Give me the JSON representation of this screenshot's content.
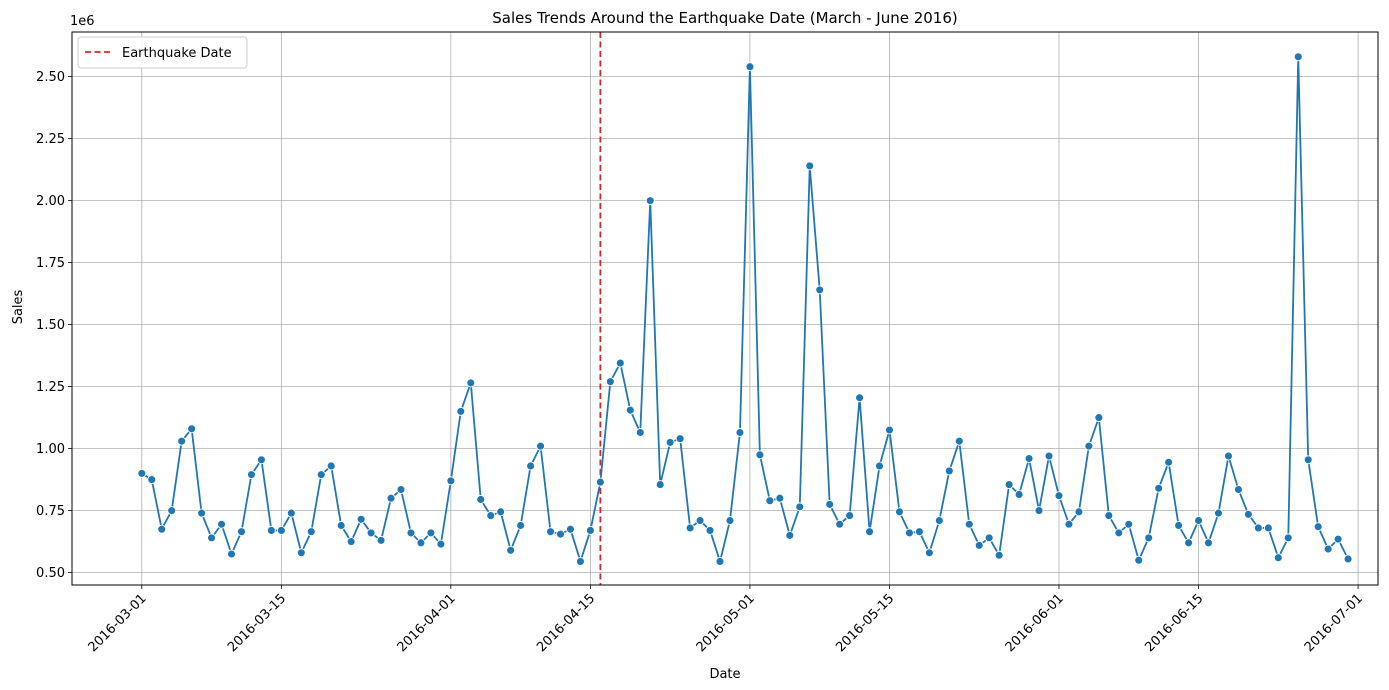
{
  "chart_data": {
    "type": "line",
    "title": "Sales Trends Around the Earthquake Date (March - June 2016)",
    "xlabel": "Date",
    "ylabel": "Sales",
    "y_offset_text": "1e6",
    "x_range": [
      "2016-02-23",
      "2016-07-03"
    ],
    "ylim": [
      0.45,
      2.68
    ],
    "y_unit_multiplier": 1000000,
    "x_ticks": [
      "2016-03-01",
      "2016-03-15",
      "2016-04-01",
      "2016-04-15",
      "2016-05-01",
      "2016-05-15",
      "2016-06-01",
      "2016-06-15",
      "2016-07-01"
    ],
    "y_ticks": [
      0.5,
      0.75,
      1.0,
      1.25,
      1.5,
      1.75,
      2.0,
      2.25,
      2.5
    ],
    "y_tick_labels": [
      "0.50",
      "0.75",
      "1.00",
      "1.25",
      "1.50",
      "1.75",
      "2.00",
      "2.25",
      "2.50"
    ],
    "grid": true,
    "legend_position": "top-left",
    "series": [
      {
        "color": "#1f77b4",
        "marker": "circle",
        "x": [
          "2016-03-01",
          "2016-03-02",
          "2016-03-03",
          "2016-03-04",
          "2016-03-05",
          "2016-03-06",
          "2016-03-07",
          "2016-03-08",
          "2016-03-09",
          "2016-03-10",
          "2016-03-11",
          "2016-03-12",
          "2016-03-13",
          "2016-03-14",
          "2016-03-15",
          "2016-03-16",
          "2016-03-17",
          "2016-03-18",
          "2016-03-19",
          "2016-03-20",
          "2016-03-21",
          "2016-03-22",
          "2016-03-23",
          "2016-03-24",
          "2016-03-25",
          "2016-03-26",
          "2016-03-27",
          "2016-03-28",
          "2016-03-29",
          "2016-03-30",
          "2016-03-31",
          "2016-04-01",
          "2016-04-02",
          "2016-04-03",
          "2016-04-04",
          "2016-04-05",
          "2016-04-06",
          "2016-04-07",
          "2016-04-08",
          "2016-04-09",
          "2016-04-10",
          "2016-04-11",
          "2016-04-12",
          "2016-04-13",
          "2016-04-14",
          "2016-04-15",
          "2016-04-16",
          "2016-04-17",
          "2016-04-18",
          "2016-04-19",
          "2016-04-20",
          "2016-04-21",
          "2016-04-22",
          "2016-04-23",
          "2016-04-24",
          "2016-04-25",
          "2016-04-26",
          "2016-04-27",
          "2016-04-28",
          "2016-04-29",
          "2016-04-30",
          "2016-05-01",
          "2016-05-02",
          "2016-05-03",
          "2016-05-04",
          "2016-05-05",
          "2016-05-06",
          "2016-05-07",
          "2016-05-08",
          "2016-05-09",
          "2016-05-10",
          "2016-05-11",
          "2016-05-12",
          "2016-05-13",
          "2016-05-14",
          "2016-05-15",
          "2016-05-16",
          "2016-05-17",
          "2016-05-18",
          "2016-05-19",
          "2016-05-20",
          "2016-05-21",
          "2016-05-22",
          "2016-05-23",
          "2016-05-24",
          "2016-05-25",
          "2016-05-26",
          "2016-05-27",
          "2016-05-28",
          "2016-05-29",
          "2016-05-30",
          "2016-05-31",
          "2016-06-01",
          "2016-06-02",
          "2016-06-03",
          "2016-06-04",
          "2016-06-05",
          "2016-06-06",
          "2016-06-07",
          "2016-06-08",
          "2016-06-09",
          "2016-06-10",
          "2016-06-11",
          "2016-06-12",
          "2016-06-13",
          "2016-06-14",
          "2016-06-15",
          "2016-06-16",
          "2016-06-17",
          "2016-06-18",
          "2016-06-19",
          "2016-06-20",
          "2016-06-21",
          "2016-06-22",
          "2016-06-23",
          "2016-06-24",
          "2016-06-25",
          "2016-06-26",
          "2016-06-27",
          "2016-06-28",
          "2016-06-29",
          "2016-06-30"
        ],
        "values": [
          0.9,
          0.875,
          0.675,
          0.75,
          1.03,
          1.08,
          0.74,
          0.64,
          0.695,
          0.575,
          0.665,
          0.895,
          0.955,
          0.67,
          0.67,
          0.74,
          0.58,
          0.665,
          0.895,
          0.93,
          0.69,
          0.625,
          0.715,
          0.66,
          0.63,
          0.8,
          0.835,
          0.66,
          0.62,
          0.66,
          0.615,
          0.87,
          1.15,
          1.265,
          0.795,
          0.73,
          0.745,
          0.59,
          0.69,
          0.93,
          1.01,
          0.665,
          0.655,
          0.675,
          0.545,
          0.67,
          0.865,
          1.27,
          1.345,
          1.155,
          1.065,
          2.0,
          0.855,
          1.025,
          1.04,
          0.68,
          0.71,
          0.67,
          0.545,
          0.71,
          1.065,
          2.54,
          0.975,
          0.79,
          0.8,
          0.65,
          0.765,
          2.14,
          1.64,
          0.775,
          0.695,
          0.73,
          1.205,
          0.665,
          0.93,
          1.075,
          0.745,
          0.66,
          0.665,
          0.58,
          0.71,
          0.91,
          1.03,
          0.695,
          0.61,
          0.64,
          0.57,
          0.855,
          0.815,
          0.96,
          0.75,
          0.97,
          0.81,
          0.695,
          0.745,
          1.01,
          1.125,
          0.73,
          0.66,
          0.695,
          0.55,
          0.64,
          0.84,
          0.945,
          0.69,
          0.62,
          0.71,
          0.62,
          0.74,
          0.97,
          0.835,
          0.735,
          0.68,
          0.68,
          0.56,
          0.64,
          2.58,
          0.955,
          0.685,
          0.595,
          0.635,
          0.555
        ]
      }
    ],
    "events": [
      {
        "label": "Earthquake Date",
        "date": "2016-04-16",
        "color": "#d62728",
        "line_style": "dashed"
      }
    ]
  }
}
